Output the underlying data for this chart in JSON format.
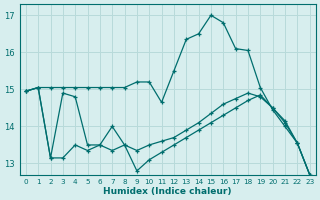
{
  "xlabel": "Humidex (Indice chaleur)",
  "ylabel": "",
  "bg_color": "#d7eeee",
  "grid_color": "#b8dada",
  "line_color": "#006e6e",
  "xlim": [
    -0.5,
    23.5
  ],
  "ylim": [
    12.7,
    17.3
  ],
  "yticks": [
    13,
    14,
    15,
    16,
    17
  ],
  "xticks": [
    0,
    1,
    2,
    3,
    4,
    5,
    6,
    7,
    8,
    9,
    10,
    11,
    12,
    13,
    14,
    15,
    16,
    17,
    18,
    19,
    20,
    21,
    22,
    23
  ],
  "lines": [
    {
      "x": [
        0,
        1,
        2,
        3,
        4,
        5,
        6,
        7,
        8,
        9,
        10,
        11,
        12,
        13,
        14,
        15,
        16,
        17,
        18,
        19,
        20,
        21,
        22,
        23
      ],
      "y": [
        14.95,
        15.05,
        15.05,
        15.05,
        15.05,
        15.05,
        15.05,
        15.05,
        15.05,
        15.2,
        15.2,
        14.65,
        15.5,
        16.35,
        16.5,
        17.0,
        16.8,
        16.1,
        16.05,
        15.05,
        14.45,
        14.0,
        13.55,
        12.7
      ]
    },
    {
      "x": [
        0,
        1,
        2,
        3,
        4,
        5,
        6,
        7,
        8,
        9,
        10,
        11,
        12,
        13,
        14,
        15,
        16,
        17,
        18,
        19,
        20,
        21,
        22,
        23
      ],
      "y": [
        14.95,
        15.05,
        13.15,
        14.9,
        14.8,
        13.5,
        13.5,
        14.0,
        13.5,
        13.35,
        13.5,
        13.6,
        13.7,
        13.9,
        14.1,
        14.35,
        14.6,
        14.75,
        14.9,
        14.8,
        14.5,
        14.15,
        13.55,
        12.7
      ]
    },
    {
      "x": [
        0,
        1,
        2,
        3,
        4,
        5,
        6,
        7,
        8,
        9,
        10,
        11,
        12,
        13,
        14,
        15,
        16,
        17,
        18,
        19,
        20,
        21,
        22,
        23
      ],
      "y": [
        14.95,
        15.05,
        13.15,
        13.15,
        13.5,
        13.35,
        13.5,
        13.35,
        13.5,
        12.8,
        13.1,
        13.3,
        13.5,
        13.7,
        13.9,
        14.1,
        14.3,
        14.5,
        14.7,
        14.85,
        14.5,
        14.1,
        13.55,
        12.7
      ]
    }
  ]
}
